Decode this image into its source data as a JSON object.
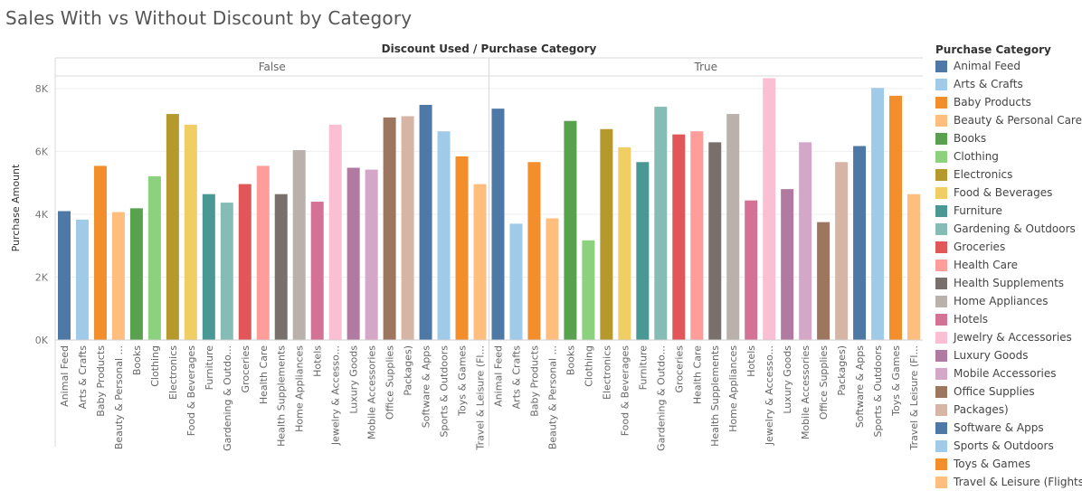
{
  "title": "Sales With vs Without Discount by Category",
  "legend": {
    "title": "Purchase Category",
    "items": [
      {
        "label": "Animal Feed",
        "color": "#4e79a7"
      },
      {
        "label": "Arts & Crafts",
        "color": "#a0cbe8"
      },
      {
        "label": "Baby Products",
        "color": "#f28e2b"
      },
      {
        "label": "Beauty & Personal Care",
        "color": "#ffbe7d"
      },
      {
        "label": "Books",
        "color": "#59a14f"
      },
      {
        "label": "Clothing",
        "color": "#8cd17d"
      },
      {
        "label": "Electronics",
        "color": "#b6992d"
      },
      {
        "label": "Food & Beverages",
        "color": "#f1ce63"
      },
      {
        "label": "Furniture",
        "color": "#499894"
      },
      {
        "label": "Gardening & Outdoors",
        "color": "#86bcb6"
      },
      {
        "label": "Groceries",
        "color": "#e15759"
      },
      {
        "label": "Health Care",
        "color": "#ff9d9a"
      },
      {
        "label": "Health Supplements",
        "color": "#79706e"
      },
      {
        "label": "Home Appliances",
        "color": "#bab0ac"
      },
      {
        "label": "Hotels",
        "color": "#d37295"
      },
      {
        "label": "Jewelry & Accessories",
        "color": "#fabfd2"
      },
      {
        "label": "Luxury Goods",
        "color": "#b07aa1"
      },
      {
        "label": "Mobile Accessories",
        "color": "#d4a6c8"
      },
      {
        "label": "Office Supplies",
        "color": "#9d7660"
      },
      {
        "label": "Packages)",
        "color": "#d7b5a6"
      },
      {
        "label": "Software & Apps",
        "color": "#4e79a7"
      },
      {
        "label": "Sports & Outdoors",
        "color": "#a0cbe8"
      },
      {
        "label": "Toys & Games",
        "color": "#f28e2b"
      },
      {
        "label": "Travel & Leisure (Flights",
        "color": "#ffbe7d"
      }
    ]
  },
  "chart_data": {
    "type": "bar",
    "title": "Sales With vs Without Discount by Category",
    "header_label": "Discount Used  /  Purchase Category",
    "ylabel": "Purchase Amount",
    "ylim": [
      0,
      8400
    ],
    "yticks": [
      0,
      2000,
      4000,
      6000,
      8000
    ],
    "ytick_labels": [
      "0K",
      "2K",
      "4K",
      "6K",
      "8K"
    ],
    "grid": true,
    "legend_position": "right",
    "categories": [
      "Animal Feed",
      "Arts & Crafts",
      "Baby Products",
      "Beauty & Personal ...",
      "Books",
      "Clothing",
      "Electronics",
      "Food & Beverages",
      "Furniture",
      "Gardening & Outdo...",
      "Groceries",
      "Health Care",
      "Health Supplements",
      "Home Appliances",
      "Hotels",
      "Jewelry & Accesso...",
      "Luxury Goods",
      "Mobile Accessories",
      "Office Supplies",
      "Packages)",
      "Software & Apps",
      "Sports & Outdoors",
      "Toys & Games",
      "Travel & Leisure (Fl..."
    ],
    "panels": [
      {
        "name": "False",
        "values": [
          4100,
          3830,
          5540,
          4070,
          4190,
          5210,
          7190,
          6850,
          4640,
          4370,
          4960,
          5540,
          4640,
          6040,
          4400,
          6850,
          5480,
          5420,
          7080,
          7120,
          7480,
          6640,
          5840,
          4960
        ]
      },
      {
        "name": "True",
        "values": [
          7360,
          3700,
          5660,
          3870,
          6970,
          3170,
          6710,
          6130,
          5660,
          7420,
          6540,
          6640,
          6290,
          7190,
          4440,
          8330,
          4800,
          6290,
          3750,
          5660,
          6170,
          8020,
          7770,
          4640
        ]
      }
    ]
  }
}
